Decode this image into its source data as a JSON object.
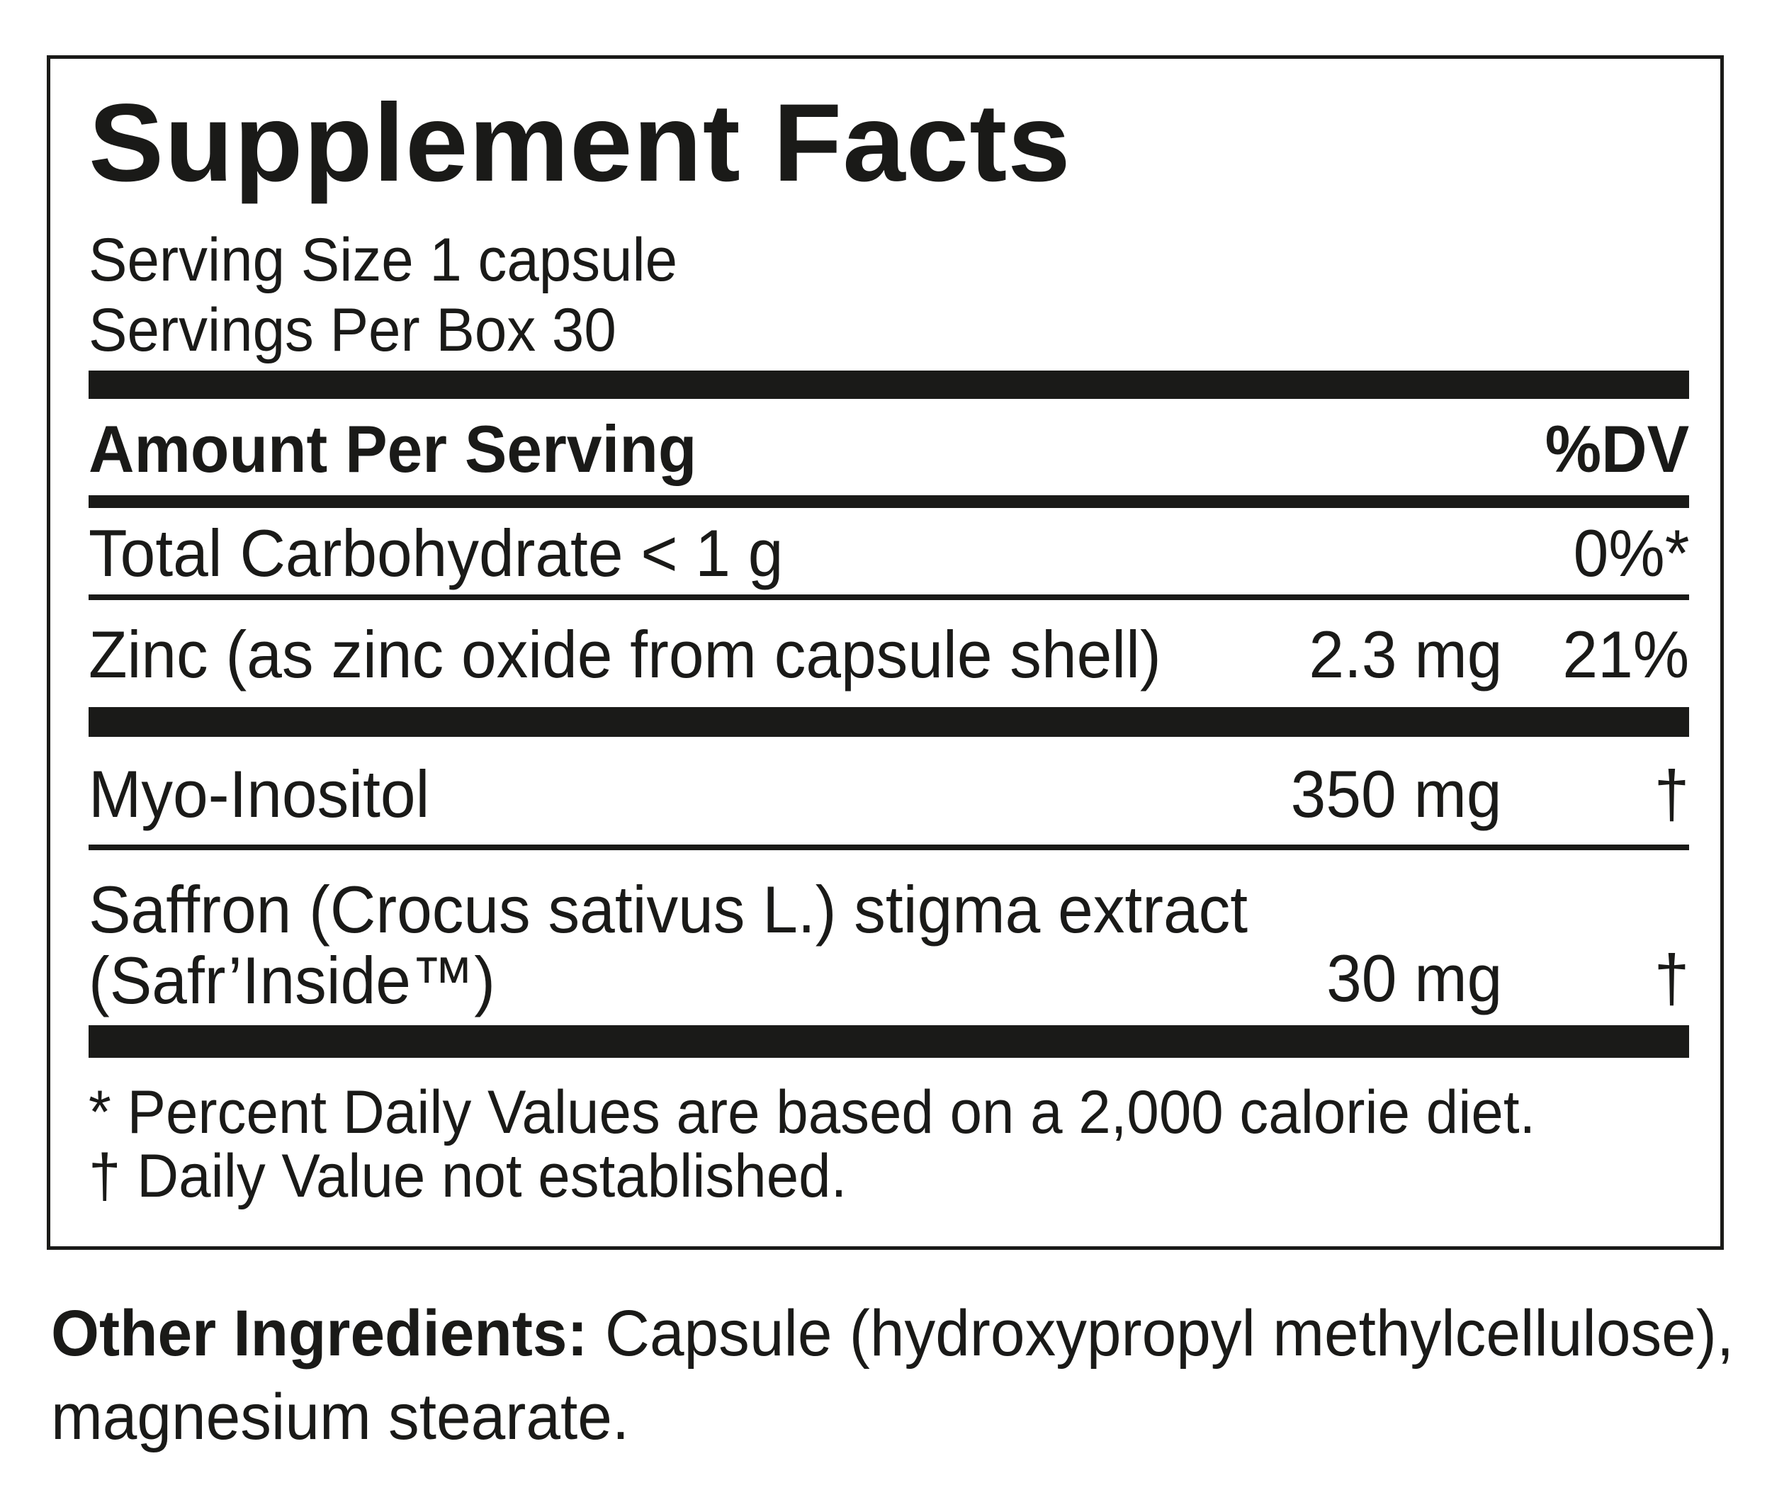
{
  "colors": {
    "ink": "#1a1a18",
    "paper": "#ffffff"
  },
  "panel": {
    "title": "Supplement Facts",
    "serving_size": "Serving Size 1 capsule",
    "servings_per_box": "Servings Per Box 30",
    "columns": {
      "amount_header": "Amount Per Serving",
      "dv_header": "%DV"
    },
    "rows": [
      {
        "name": "Total Carbohydrate < 1 g",
        "amount": "",
        "dv": "0%*"
      },
      {
        "name": "Zinc (as zinc oxide from capsule shell)",
        "amount": "2.3 mg",
        "dv": "21%"
      },
      {
        "name": "Myo-Inositol",
        "amount": "350 mg",
        "dv": "†"
      },
      {
        "name_line1": "Saffron (Crocus sativus L.) stigma extract",
        "name_line2": "(Safr’Inside™)",
        "amount": "30 mg",
        "dv": "†"
      }
    ],
    "footnotes": {
      "daily_values": "* Percent Daily Values are based on a 2,000 calorie diet.",
      "not_established": "† Daily Value not established."
    }
  },
  "other_ingredients": {
    "label": "Other Ingredients:",
    "line1_rest": " Capsule (hydroxypropyl methylcellulose),",
    "line2": "magnesium stearate."
  }
}
